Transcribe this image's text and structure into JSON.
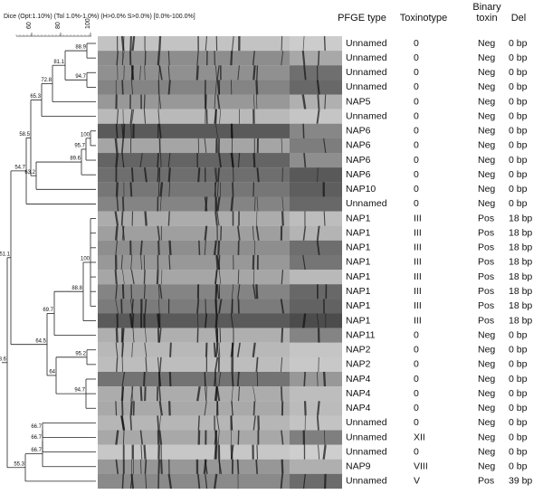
{
  "header": {
    "title": "Dice (Opt:1.10%) (Tol 1.0%-1.0%) (H>0.0% S>0.0%) [0.0%-100.0%]",
    "scale": [
      "60",
      "80",
      "100"
    ]
  },
  "columns": [
    "PFGE type",
    "Toxinotype",
    "Binary toxin",
    "Del"
  ],
  "nodes": [
    "88.9",
    "81.1",
    "94.7",
    "72.8",
    "65.3",
    "100",
    "95.7",
    "63.2",
    "89.6",
    "58.5",
    "54.7",
    "100",
    "88.8",
    "69.7",
    "64.5",
    "95.2",
    "64",
    "51.1",
    "94.7",
    "48.6",
    "66.7",
    "66.7",
    "66.7",
    "55.3"
  ],
  "rows": [
    [
      "Unnamed",
      "0",
      "Neg",
      "0 bp"
    ],
    [
      "Unnamed",
      "0",
      "Neg",
      "0 bp"
    ],
    [
      "Unnamed",
      "0",
      "Neg",
      "0 bp"
    ],
    [
      "Unnamed",
      "0",
      "Neg",
      "0 bp"
    ],
    [
      "NAP5",
      "0",
      "Neg",
      "0 bp"
    ],
    [
      "Unnamed",
      "0",
      "Neg",
      "0 bp"
    ],
    [
      "NAP6",
      "0",
      "Neg",
      "0 bp"
    ],
    [
      "NAP6",
      "0",
      "Neg",
      "0 bp"
    ],
    [
      "NAP6",
      "0",
      "Neg",
      "0 bp"
    ],
    [
      "NAP6",
      "0",
      "Neg",
      "0 bp"
    ],
    [
      "NAP10",
      "0",
      "Neg",
      "0 bp"
    ],
    [
      "Unnamed",
      "0",
      "Neg",
      "0 bp"
    ],
    [
      "NAP1",
      "III",
      "Pos",
      "18 bp"
    ],
    [
      "NAP1",
      "III",
      "Pos",
      "18 bp"
    ],
    [
      "NAP1",
      "III",
      "Pos",
      "18 bp"
    ],
    [
      "NAP1",
      "III",
      "Pos",
      "18 bp"
    ],
    [
      "NAP1",
      "III",
      "Pos",
      "18 bp"
    ],
    [
      "NAP1",
      "III",
      "Pos",
      "18 bp"
    ],
    [
      "NAP1",
      "III",
      "Pos",
      "18 bp"
    ],
    [
      "NAP1",
      "III",
      "Pos",
      "18 bp"
    ],
    [
      "NAP11",
      "0",
      "Neg",
      "0 bp"
    ],
    [
      "NAP2",
      "0",
      "Neg",
      "0 bp"
    ],
    [
      "NAP2",
      "0",
      "Neg",
      "0 bp"
    ],
    [
      "NAP4",
      "0",
      "Neg",
      "0 bp"
    ],
    [
      "NAP4",
      "0",
      "Neg",
      "0 bp"
    ],
    [
      "NAP4",
      "0",
      "Neg",
      "0 bp"
    ],
    [
      "Unnamed",
      "0",
      "Neg",
      "0 bp"
    ],
    [
      "Unnamed",
      "XII",
      "Neg",
      "0 bp"
    ],
    [
      "Unnamed",
      "0",
      "Neg",
      "0 bp"
    ],
    [
      "NAP9",
      "VIII",
      "Neg",
      "0 bp"
    ],
    [
      "Unnamed",
      "V",
      "Pos",
      "39 bp"
    ]
  ]
}
